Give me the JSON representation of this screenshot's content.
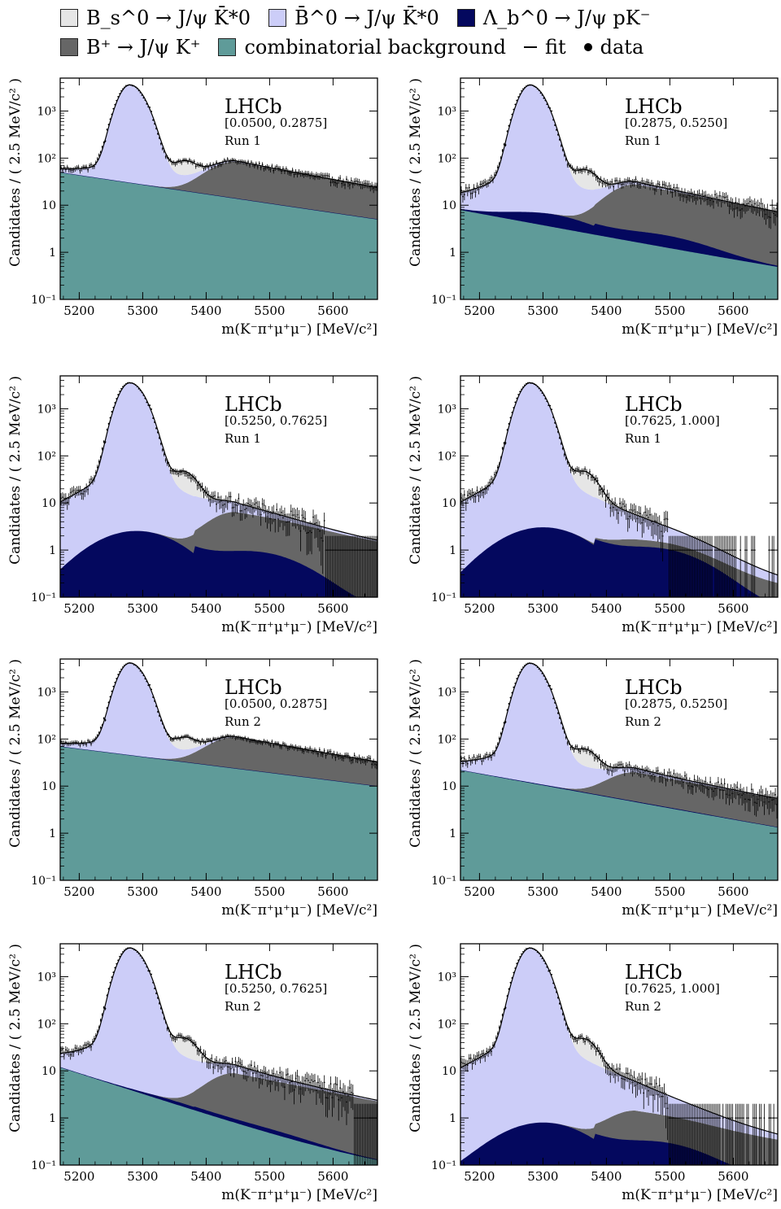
{
  "legend": {
    "row1": [
      {
        "label": "B_s^0 → J/ψ K̄*0",
        "color": "#e6e6e6"
      },
      {
        "label": "B̄^0 → J/ψ K̄*0",
        "color": "#cccdf8"
      },
      {
        "label": "Λ_b^0 → J/ψ pK⁻",
        "color": "#04085e"
      }
    ],
    "row2": [
      {
        "label": "B⁺ → J/ψ K⁺",
        "color": "#666666"
      },
      {
        "label": "combinatorial background",
        "color": "#5f9b99"
      }
    ],
    "fit_label": "fit",
    "data_label": "data"
  },
  "chart_data": [
    {
      "type": "area",
      "experiment": "LHCb",
      "bin": "[0.0500, 0.2875]",
      "run": "Run 1",
      "xlabel": "m(K⁻π⁺μ⁺μ⁻) [MeV/c²]",
      "ylabel": "Candidates / ( 2.5 MeV/c² )",
      "xlim": [
        5170,
        5670
      ],
      "ylim": [
        0.1,
        5000
      ],
      "yscale": "log",
      "xticks": [
        5200,
        5300,
        5400,
        5500,
        5600
      ],
      "yticks": [
        "10⁻¹",
        "1",
        "10",
        "10²",
        "10³"
      ],
      "components": {
        "comb_start": 50,
        "comb_end": 5,
        "lambda_b": 0,
        "lambda_b_mu": 5300,
        "b_plus": 70,
        "bd_peak": 3500,
        "bs_peak": 45
      }
    },
    {
      "type": "area",
      "experiment": "LHCb",
      "bin": "[0.2875, 0.5250]",
      "run": "Run 1",
      "xlabel": "m(K⁻π⁺μ⁺μ⁻) [MeV/c²]",
      "ylabel": "Candidates / ( 2.5 MeV/c² )",
      "xlim": [
        5170,
        5670
      ],
      "ylim": [
        0.1,
        5000
      ],
      "yscale": "log",
      "xticks": [
        5200,
        5300,
        5400,
        5500,
        5600
      ],
      "yticks": [
        "10⁻¹",
        "1",
        "10",
        "10²",
        "10³"
      ],
      "components": {
        "comb_start": 8,
        "comb_end": 0.45,
        "lambda_b": 3,
        "lambda_b_mu": 5300,
        "b_plus": 25,
        "bd_peak": 3500,
        "bs_peak": 35
      }
    },
    {
      "type": "area",
      "experiment": "LHCb",
      "bin": "[0.5250, 0.7625]",
      "run": "Run 1",
      "xlabel": "m(K⁻π⁺μ⁺μ⁻) [MeV/c²]",
      "ylabel": "Candidates / ( 2.5 MeV/c² )",
      "xlim": [
        5170,
        5670
      ],
      "ylim": [
        0.1,
        5000
      ],
      "yscale": "log",
      "xticks": [
        5200,
        5300,
        5400,
        5500,
        5600
      ],
      "yticks": [
        "10⁻¹",
        "1",
        "10",
        "10²",
        "10³"
      ],
      "components": {
        "comb_start": 0,
        "comb_end": 0,
        "lambda_b": 2.5,
        "lambda_b_mu": 5290,
        "b_plus": 5.5,
        "bd_peak": 3500,
        "bs_peak": 30
      }
    },
    {
      "type": "area",
      "experiment": "LHCb",
      "bin": "[0.7625, 1.000]",
      "run": "Run 1",
      "xlabel": "m(K⁻π⁺μ⁺μ⁻) [MeV/c²]",
      "ylabel": "Candidates / ( 2.5 MeV/c² )",
      "xlim": [
        5170,
        5670
      ],
      "ylim": [
        0.1,
        5000
      ],
      "yscale": "log",
      "xticks": [
        5200,
        5300,
        5400,
        5500,
        5600
      ],
      "yticks": [
        "10⁻¹",
        "1",
        "10",
        "10²",
        "10³"
      ],
      "components": {
        "comb_start": 0,
        "comb_end": 0,
        "lambda_b": 3,
        "lambda_b_mu": 5300,
        "b_plus": 0.5,
        "bd_peak": 3500,
        "bs_peak": 30
      }
    },
    {
      "type": "area",
      "experiment": "LHCb",
      "bin": "[0.0500, 0.2875]",
      "run": "Run 2",
      "xlabel": "m(K⁻π⁺μ⁺μ⁻) [MeV/c²]",
      "ylabel": "Candidates / ( 2.5 MeV/c² )",
      "xlim": [
        5170,
        5670
      ],
      "ylim": [
        0.1,
        5000
      ],
      "yscale": "log",
      "xticks": [
        5200,
        5300,
        5400,
        5500,
        5600
      ],
      "yticks": [
        "10⁻¹",
        "1",
        "10",
        "10²",
        "10³"
      ],
      "components": {
        "comb_start": 70,
        "comb_end": 10,
        "lambda_b": 0,
        "lambda_b_mu": 5300,
        "b_plus": 85,
        "bd_peak": 4000,
        "bs_peak": 50
      }
    },
    {
      "type": "area",
      "experiment": "LHCb",
      "bin": "[0.2875, 0.5250]",
      "run": "Run 2",
      "xlabel": "m(K⁻π⁺μ⁺μ⁻) [MeV/c²]",
      "ylabel": "Candidates / ( 2.5 MeV/c² )",
      "xlim": [
        5170,
        5670
      ],
      "ylim": [
        0.1,
        5000
      ],
      "yscale": "log",
      "xticks": [
        5200,
        5300,
        5400,
        5500,
        5600
      ],
      "yticks": [
        "10⁻¹",
        "1",
        "10",
        "10²",
        "10³"
      ],
      "components": {
        "comb_start": 22,
        "comb_end": 1.3,
        "lambda_b": 0.15,
        "lambda_b_mu": 5300,
        "b_plus": 15,
        "bd_peak": 4000,
        "bs_peak": 35
      }
    },
    {
      "type": "area",
      "experiment": "LHCb",
      "bin": "[0.5250, 0.7625]",
      "run": "Run 2",
      "xlabel": "m(K⁻π⁺μ⁺μ⁻) [MeV/c²]",
      "ylabel": "Candidates / ( 2.5 MeV/c² )",
      "xlim": [
        5170,
        5670
      ],
      "ylim": [
        0.1,
        5000
      ],
      "yscale": "log",
      "xticks": [
        5200,
        5300,
        5400,
        5500,
        5600
      ],
      "yticks": [
        "10⁻¹",
        "1",
        "10",
        "10²",
        "10³"
      ],
      "components": {
        "comb_start": 12,
        "comb_end": 0.08,
        "lambda_b": 0.3,
        "lambda_b_mu": 5330,
        "b_plus": 8,
        "bd_peak": 4000,
        "bs_peak": 30
      }
    },
    {
      "type": "area",
      "experiment": "LHCb",
      "bin": "[0.7625, 1.000]",
      "run": "Run 2",
      "xlabel": "m(K⁻π⁺μ⁺μ⁻) [MeV/c²]",
      "ylabel": "Candidates / ( 2.5 MeV/c² )",
      "xlim": [
        5170,
        5670
      ],
      "ylim": [
        0.1,
        5000
      ],
      "yscale": "log",
      "xticks": [
        5200,
        5300,
        5400,
        5500,
        5600
      ],
      "yticks": [
        "10⁻¹",
        "1",
        "10",
        "10²",
        "10³"
      ],
      "components": {
        "comb_start": 0,
        "comb_end": 0,
        "lambda_b": 0.75,
        "lambda_b_mu": 5300,
        "b_plus": 1.1,
        "bd_peak": 4000,
        "bs_peak": 30
      }
    }
  ]
}
